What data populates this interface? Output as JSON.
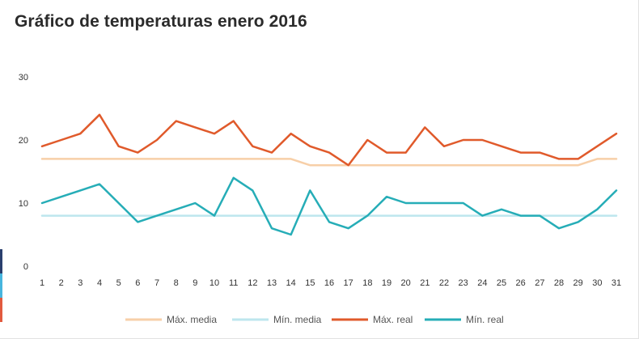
{
  "chart_data": {
    "type": "line",
    "title": "Gráfico de temperaturas enero 2016",
    "xlabel": "",
    "ylabel": "",
    "ylim": [
      0,
      30
    ],
    "yticks": [
      0,
      10,
      20,
      30
    ],
    "grid": false,
    "legend_position": "bottom",
    "categories": [
      "1",
      "2",
      "3",
      "4",
      "5",
      "6",
      "7",
      "8",
      "9",
      "10",
      "11",
      "12",
      "13",
      "14",
      "15",
      "16",
      "17",
      "18",
      "19",
      "20",
      "21",
      "22",
      "23",
      "24",
      "25",
      "26",
      "27",
      "28",
      "29",
      "30",
      "31"
    ],
    "series": [
      {
        "name": "Máx. media",
        "color": "#f7cfa8",
        "values": [
          17,
          17,
          17,
          17,
          17,
          17,
          17,
          17,
          17,
          17,
          17,
          17,
          17,
          17,
          16,
          16,
          16,
          16,
          16,
          16,
          16,
          16,
          16,
          16,
          16,
          16,
          16,
          16,
          16,
          17,
          17
        ]
      },
      {
        "name": "Mín. media",
        "color": "#bde6ee",
        "values": [
          8,
          8,
          8,
          8,
          8,
          8,
          8,
          8,
          8,
          8,
          8,
          8,
          8,
          8,
          8,
          8,
          8,
          8,
          8,
          8,
          8,
          8,
          8,
          8,
          8,
          8,
          8,
          8,
          8,
          8,
          8
        ]
      },
      {
        "name": "Máx. real",
        "color": "#e05a2b",
        "values": [
          19,
          20,
          21,
          24,
          19,
          18,
          20,
          23,
          22,
          21,
          23,
          19,
          18,
          21,
          19,
          18,
          16,
          20,
          18,
          18,
          22,
          19,
          20,
          20,
          19,
          18,
          18,
          17,
          17,
          19,
          21
        ]
      },
      {
        "name": "Mín. real",
        "color": "#26adb7",
        "values": [
          10,
          11,
          12,
          13,
          10,
          7,
          8,
          9,
          10,
          8,
          14,
          12,
          6,
          5,
          12,
          7,
          6,
          8,
          11,
          10,
          10,
          10,
          10,
          8,
          9,
          8,
          8,
          6,
          7,
          9,
          12
        ]
      }
    ]
  },
  "edge_colors": [
    "#2a3f6e",
    "#47b5de",
    "#e25a3e"
  ]
}
